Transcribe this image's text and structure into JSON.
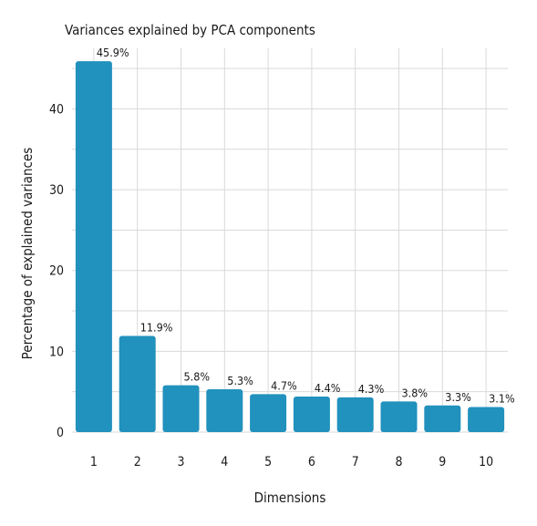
{
  "chart_data": {
    "type": "bar",
    "title": "Variances explained by PCA components",
    "xlabel": "Dimensions",
    "ylabel": "Percentage of explained variances",
    "categories": [
      "1",
      "2",
      "3",
      "4",
      "5",
      "6",
      "7",
      "8",
      "9",
      "10"
    ],
    "values": [
      45.9,
      11.9,
      5.8,
      5.3,
      4.7,
      4.4,
      4.3,
      3.8,
      3.3,
      3.1
    ],
    "data_labels": [
      "45.9%",
      "11.9%",
      "5.8%",
      "5.3%",
      "4.7%",
      "4.4%",
      "4.3%",
      "3.8%",
      "3.3%",
      "3.1%"
    ],
    "ylim": [
      0,
      47.5
    ],
    "yticks": [
      0,
      10,
      20,
      30,
      40
    ],
    "grid": true,
    "bar_color": "#2191bd"
  }
}
